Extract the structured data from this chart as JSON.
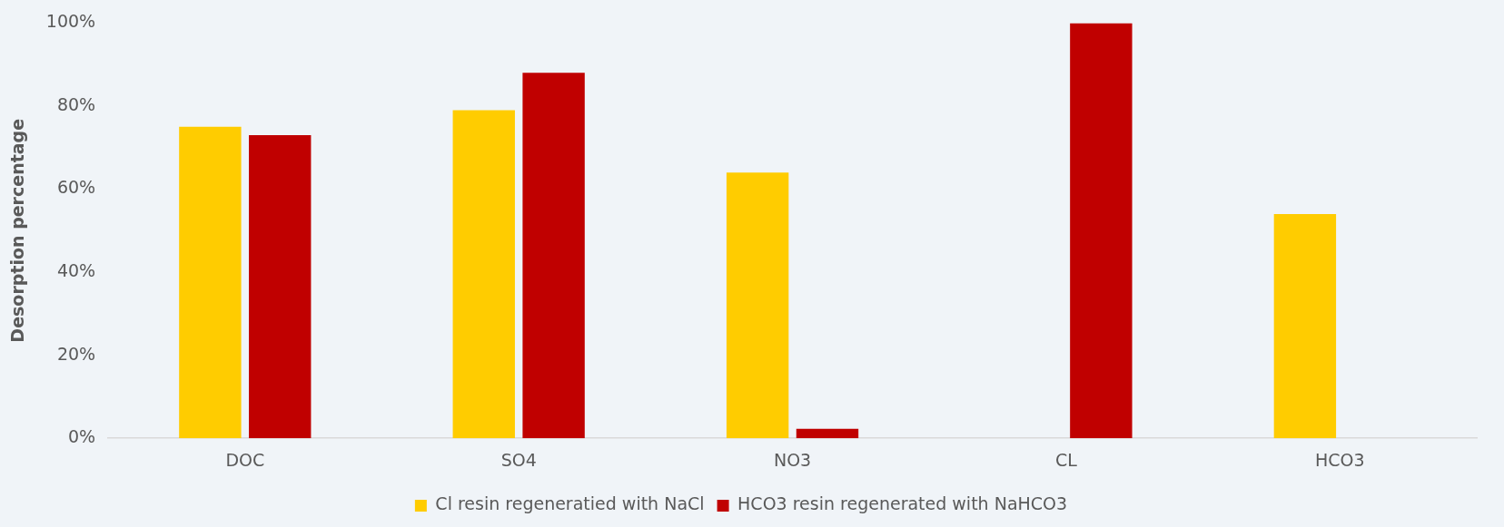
{
  "chart_data": {
    "type": "bar",
    "ylabel": "Desorption percentage",
    "categories": [
      "DOC",
      "SO4",
      "NO3",
      "CL",
      "HCO3"
    ],
    "series": [
      {
        "name": "Cl resin regeneratied with NaCl",
        "color": "#ffcc00",
        "values": [
          75,
          79,
          64,
          null,
          54
        ]
      },
      {
        "name": "HCO3 resin regenerated with NaHCO3",
        "color": "#c00000",
        "values": [
          73,
          88,
          2.3,
          100,
          null
        ]
      }
    ],
    "ylim": [
      0,
      100
    ],
    "yticks": [
      {
        "value": 0,
        "label": "0%"
      },
      {
        "value": 20,
        "label": "20%"
      },
      {
        "value": 40,
        "label": "40%"
      },
      {
        "value": 60,
        "label": "60%"
      },
      {
        "value": 80,
        "label": "80%"
      },
      {
        "value": 100,
        "label": "100%"
      }
    ],
    "grid": false,
    "legend": "bottom"
  }
}
